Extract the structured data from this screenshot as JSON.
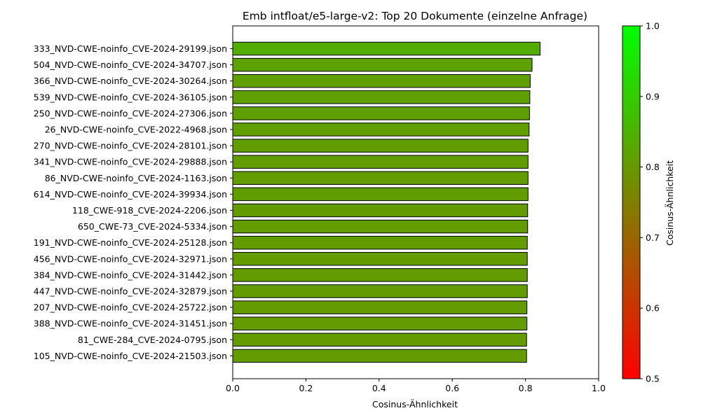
{
  "chart_data": {
    "type": "bar",
    "orientation": "horizontal",
    "title": "Emb intfloat/e5-large-v2: Top 20 Dokumente (einzelne Anfrage)",
    "xlabel": "Cosinus-Ähnlichkeit",
    "ylabel": "",
    "xlim": [
      0.0,
      1.0
    ],
    "xticks": [
      "0.0",
      "0.2",
      "0.4",
      "0.6",
      "0.8",
      "1.0"
    ],
    "grid": false,
    "categories": [
      "333_NVD-CWE-noinfo_CVE-2024-29199.json",
      "504_NVD-CWE-noinfo_CVE-2024-34707.json",
      "366_NVD-CWE-noinfo_CVE-2024-30264.json",
      "539_NVD-CWE-noinfo_CVE-2024-36105.json",
      "250_NVD-CWE-noinfo_CVE-2024-27306.json",
      "26_NVD-CWE-noinfo_CVE-2022-4968.json",
      "270_NVD-CWE-noinfo_CVE-2024-28101.json",
      "341_NVD-CWE-noinfo_CVE-2024-29888.json",
      "86_NVD-CWE-noinfo_CVE-2024-1163.json",
      "614_NVD-CWE-noinfo_CVE-2024-39934.json",
      "118_CWE-918_CVE-2024-2206.json",
      "650_CWE-73_CVE-2024-5334.json",
      "191_NVD-CWE-noinfo_CVE-2024-25128.json",
      "456_NVD-CWE-noinfo_CVE-2024-32971.json",
      "384_NVD-CWE-noinfo_CVE-2024-31442.json",
      "447_NVD-CWE-noinfo_CVE-2024-32879.json",
      "207_NVD-CWE-noinfo_CVE-2024-25722.json",
      "388_NVD-CWE-noinfo_CVE-2024-31451.json",
      "81_CWE-284_CVE-2024-0795.json",
      "105_NVD-CWE-noinfo_CVE-2024-21503.json"
    ],
    "values": [
      0.84,
      0.818,
      0.813,
      0.812,
      0.811,
      0.81,
      0.807,
      0.807,
      0.807,
      0.807,
      0.806,
      0.806,
      0.805,
      0.805,
      0.805,
      0.805,
      0.804,
      0.804,
      0.803,
      0.803
    ],
    "colorbar": {
      "label": "Cosinus-Ähnlichkeit",
      "range": [
        0.5,
        1.0
      ],
      "ticks": [
        "0.5",
        "0.6",
        "0.7",
        "0.8",
        "0.9",
        "1.0"
      ],
      "color_low": "#ff0000",
      "color_high": "#00ff00"
    },
    "bar_edge_color": "#000000"
  }
}
